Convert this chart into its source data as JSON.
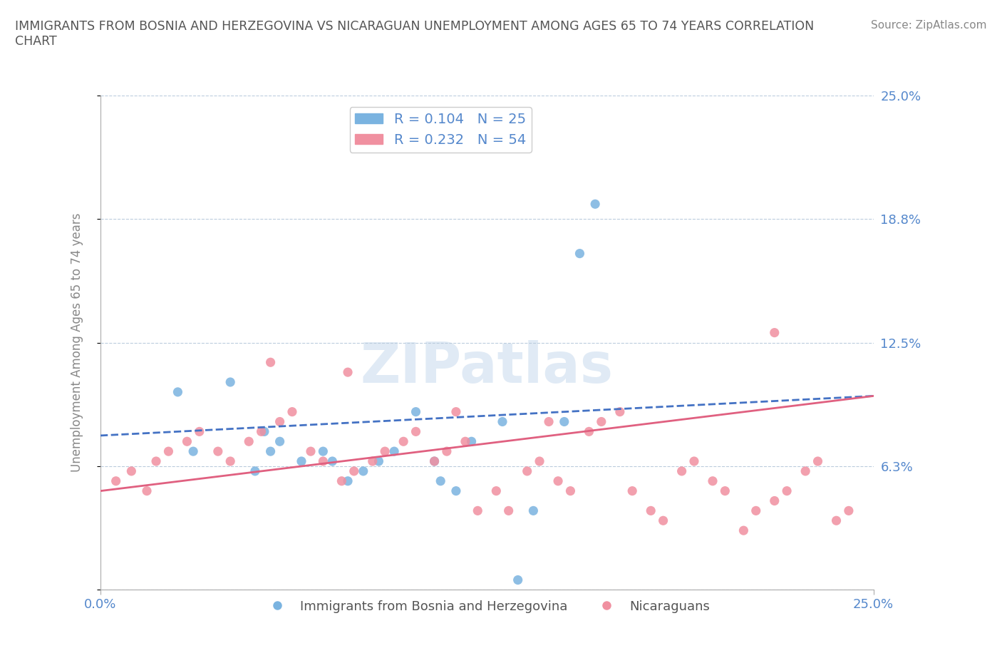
{
  "title": "IMMIGRANTS FROM BOSNIA AND HERZEGOVINA VS NICARAGUAN UNEMPLOYMENT AMONG AGES 65 TO 74 YEARS CORRELATION\nCHART",
  "source": "Source: ZipAtlas.com",
  "ylabel": "Unemployment Among Ages 65 to 74 years",
  "xlim": [
    0,
    0.25
  ],
  "ylim": [
    0,
    0.25
  ],
  "yticks": [
    0.0,
    0.0625,
    0.125,
    0.1875,
    0.25
  ],
  "yticklabels": [
    "",
    "6.3%",
    "12.5%",
    "18.8%",
    "25.0%"
  ],
  "xticks": [
    0.0,
    0.25
  ],
  "xticklabels": [
    "0.0%",
    "25.0%"
  ],
  "blue_scatter_x": [
    0.03,
    0.025,
    0.042,
    0.05,
    0.055,
    0.058,
    0.065,
    0.053,
    0.072,
    0.075,
    0.08,
    0.085,
    0.09,
    0.095,
    0.102,
    0.108,
    0.11,
    0.115,
    0.12,
    0.13,
    0.14,
    0.15,
    0.155,
    0.16,
    0.135
  ],
  "blue_scatter_y": [
    0.07,
    0.1,
    0.105,
    0.06,
    0.07,
    0.075,
    0.065,
    0.08,
    0.07,
    0.065,
    0.055,
    0.06,
    0.065,
    0.07,
    0.09,
    0.065,
    0.055,
    0.05,
    0.075,
    0.085,
    0.04,
    0.085,
    0.17,
    0.195,
    0.005
  ],
  "pink_scatter_x": [
    0.005,
    0.01,
    0.015,
    0.018,
    0.022,
    0.028,
    0.032,
    0.038,
    0.042,
    0.048,
    0.052,
    0.058,
    0.062,
    0.068,
    0.072,
    0.078,
    0.082,
    0.088,
    0.092,
    0.098,
    0.102,
    0.108,
    0.112,
    0.118,
    0.122,
    0.128,
    0.132,
    0.138,
    0.142,
    0.148,
    0.152,
    0.158,
    0.162,
    0.168,
    0.172,
    0.178,
    0.182,
    0.188,
    0.192,
    0.198,
    0.202,
    0.208,
    0.212,
    0.218,
    0.222,
    0.228,
    0.232,
    0.238,
    0.242,
    0.218,
    0.055,
    0.08,
    0.115,
    0.145
  ],
  "pink_scatter_y": [
    0.055,
    0.06,
    0.05,
    0.065,
    0.07,
    0.075,
    0.08,
    0.07,
    0.065,
    0.075,
    0.08,
    0.085,
    0.09,
    0.07,
    0.065,
    0.055,
    0.06,
    0.065,
    0.07,
    0.075,
    0.08,
    0.065,
    0.07,
    0.075,
    0.04,
    0.05,
    0.04,
    0.06,
    0.065,
    0.055,
    0.05,
    0.08,
    0.085,
    0.09,
    0.05,
    0.04,
    0.035,
    0.06,
    0.065,
    0.055,
    0.05,
    0.03,
    0.04,
    0.045,
    0.05,
    0.06,
    0.065,
    0.035,
    0.04,
    0.13,
    0.115,
    0.11,
    0.09,
    0.085
  ],
  "blue_trend_x": [
    0.0,
    0.25
  ],
  "blue_trend_y": [
    0.078,
    0.098
  ],
  "pink_trend_x": [
    0.0,
    0.25
  ],
  "pink_trend_y": [
    0.05,
    0.098
  ],
  "watermark": "ZIPatlas",
  "blue_color": "#7ab3e0",
  "pink_color": "#f090a0",
  "blue_line_color": "#4472c4",
  "pink_line_color": "#e06080",
  "tick_color": "#5588cc",
  "grid_color": "#bbccdd",
  "title_color": "#555555",
  "source_color": "#888888",
  "ylabel_color": "#888888",
  "legend_r1": "R = 0.104   N = 25",
  "legend_r2": "R = 0.232   N = 54",
  "legend_label1": "Immigrants from Bosnia and Herzegovina",
  "legend_label2": "Nicaraguans"
}
